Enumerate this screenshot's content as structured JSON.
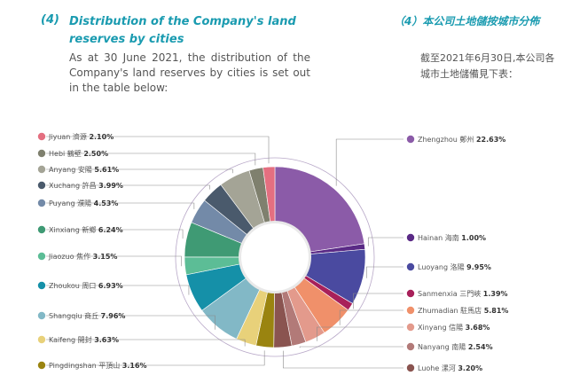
{
  "header": {
    "number": "(4)",
    "title_en": "Distribution of the Company's land reserves by cities",
    "number_cn": "（4）",
    "title_cn": "本公司土地儲按城市分佈",
    "intro_en": "As at 30 June 2021, the distribution of the Company's land reserves by cities is set out in the table below:",
    "intro_cn": "截至2021年6月30日,本公司各城市土地儲備見下表："
  },
  "chart_data": {
    "type": "pie",
    "variant": "donut",
    "slices": [
      {
        "name": "Zhengzhou 鄭州",
        "value": 22.63,
        "pct": "22.63%",
        "color": "#8b5ba8"
      },
      {
        "name": "Hainan 海南",
        "value": 1.0,
        "pct": "1.00%",
        "color": "#5a2a86"
      },
      {
        "name": "Luoyang 洛陽",
        "value": 9.95,
        "pct": "9.95%",
        "color": "#4a4aa0"
      },
      {
        "name": "Sanmenxia 三門峽",
        "value": 1.39,
        "pct": "1.39%",
        "color": "#a8205a"
      },
      {
        "name": "Zhumadian 駐馬店",
        "value": 5.81,
        "pct": "5.81%",
        "color": "#f0906a"
      },
      {
        "name": "Xinyang 信陽",
        "value": 3.68,
        "pct": "3.68%",
        "color": "#e39a8c"
      },
      {
        "name": "Nanyang 南陽",
        "value": 2.54,
        "pct": "2.54%",
        "color": "#b27a78"
      },
      {
        "name": "Luohe 漯河",
        "value": 3.2,
        "pct": "3.20%",
        "color": "#8a5450"
      },
      {
        "name": "Pingdingshan 平頂山",
        "value": 3.16,
        "pct": "3.16%",
        "color": "#9a8410"
      },
      {
        "name": "Kaifeng 開封",
        "value": 3.63,
        "pct": "3.63%",
        "color": "#e8d17a"
      },
      {
        "name": "Shangqiu 商丘",
        "value": 7.96,
        "pct": "7.96%",
        "color": "#82b8c6"
      },
      {
        "name": "Zhoukou 周口",
        "value": 6.93,
        "pct": "6.93%",
        "color": "#1590a8"
      },
      {
        "name": "Jiaozuo 焦作",
        "value": 3.15,
        "pct": "3.15%",
        "color": "#5cbd96"
      },
      {
        "name": "Xinxiang 新鄉",
        "value": 6.24,
        "pct": "6.24%",
        "color": "#3f9a74"
      },
      {
        "name": "Puyang 濮陽",
        "value": 4.53,
        "pct": "4.53%",
        "color": "#738aa8"
      },
      {
        "name": "Xuchang 許昌",
        "value": 3.99,
        "pct": "3.99%",
        "color": "#4a5a6c"
      },
      {
        "name": "Anyang 安陽",
        "value": 5.61,
        "pct": "5.61%",
        "color": "#a4a496"
      },
      {
        "name": "Hebi 鶴壁",
        "value": 2.5,
        "pct": "2.50%",
        "color": "#7f806e"
      },
      {
        "name": "Jiyuan 濟源",
        "value": 2.1,
        "pct": "2.10%",
        "color": "#e46f80"
      }
    ]
  }
}
